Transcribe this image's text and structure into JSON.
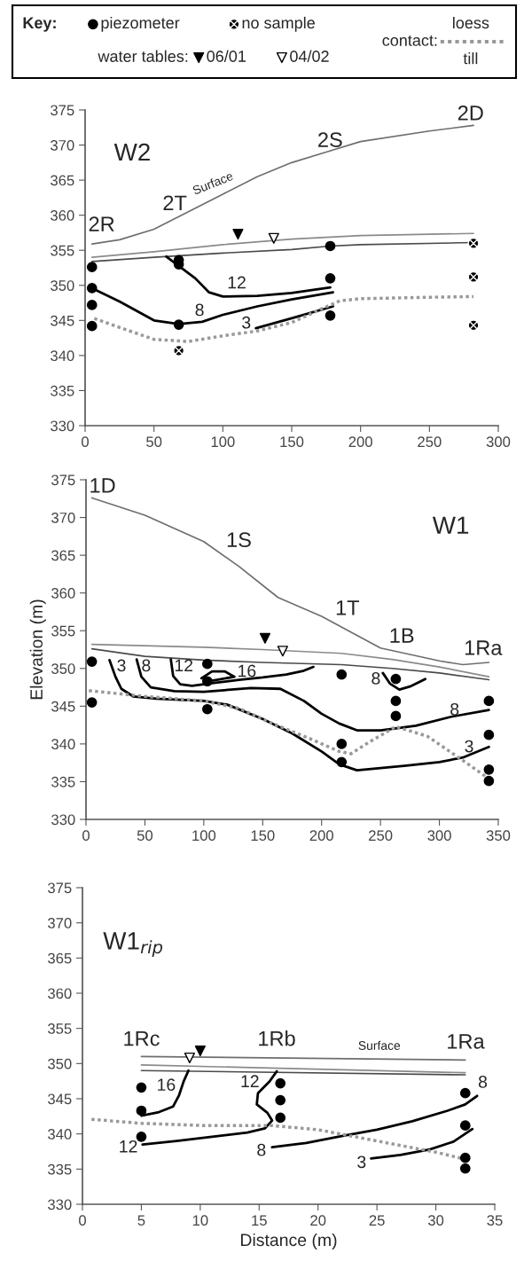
{
  "chart_data": [
    {
      "type": "line",
      "title": "W2",
      "xlim": [
        0,
        300
      ],
      "ylim": [
        330,
        375
      ],
      "xticks": [
        0,
        50,
        100,
        150,
        200,
        250,
        300
      ],
      "yticks": [
        330,
        335,
        340,
        345,
        350,
        355,
        360,
        365,
        370,
        375
      ],
      "legend": "top",
      "legend_title": "Key:",
      "series": [
        {
          "color": "#6e6e6e",
          "x": [
            5,
            25,
            50,
            75,
            100,
            125,
            150,
            175,
            200,
            250,
            282
          ],
          "values": [
            355.9,
            356.5,
            358,
            360.5,
            363,
            365.5,
            367.5,
            369,
            370.5,
            372,
            372.8
          ]
        },
        {
          "color": "#8a8a8a",
          "x": [
            5,
            50,
            100,
            150,
            200,
            282
          ],
          "values": [
            354,
            354.8,
            355.8,
            356.6,
            357.1,
            357.4
          ]
        },
        {
          "color": "#4a4a4a",
          "x": [
            5,
            50,
            100,
            150,
            178,
            200,
            282
          ],
          "values": [
            353.4,
            354,
            354.6,
            355.1,
            355.6,
            355.8,
            356.1
          ]
        },
        {
          "color": "#000000",
          "x": [
            59,
            80,
            90,
            100,
            125,
            150,
            178
          ],
          "values": [
            354.1,
            351,
            349,
            348.4,
            348.5,
            348.9,
            349.7
          ]
        },
        {
          "color": "#000000",
          "x": [
            5,
            25,
            50,
            68,
            85,
            100,
            125,
            150,
            180
          ],
          "values": [
            349.6,
            347.7,
            345,
            344.5,
            344.8,
            345.8,
            347,
            348,
            349
          ]
        },
        {
          "color": "#000000",
          "x": [
            124,
            150,
            180
          ],
          "values": [
            343.9,
            345.3,
            347
          ]
        },
        {
          "color": "#999999",
          "line_style": "dotted",
          "x": [
            5,
            25,
            50,
            75,
            100,
            125,
            150,
            170,
            185,
            200,
            250,
            282
          ],
          "values": [
            345.4,
            344,
            342.3,
            342,
            342.8,
            343.5,
            344.7,
            346.5,
            347.8,
            348.1,
            348.3,
            348.4
          ]
        },
        {
          "type": "scatter",
          "name": "piezometer",
          "color": "#000000",
          "marker": "circle",
          "x": [
            5,
            5,
            5,
            5,
            68,
            68,
            68,
            178,
            178,
            178
          ],
          "values": [
            352.6,
            349.6,
            347.2,
            344.2,
            353.6,
            353,
            344.4,
            355.6,
            351,
            345.7
          ]
        },
        {
          "type": "scatter",
          "name": "no sample",
          "color": "#000000",
          "marker": "cross",
          "x": [
            68,
            282,
            282,
            282
          ],
          "values": [
            340.7,
            356,
            351.2,
            344.3
          ]
        },
        {
          "type": "scatter",
          "name": "06/01",
          "color": "#000000",
          "marker": "triangle",
          "x": [
            111
          ],
          "values": [
            357.3
          ]
        },
        {
          "type": "scatter",
          "name": "04/02",
          "color": "#ffffff",
          "marker": "triangle",
          "x": [
            137
          ],
          "values": [
            356.7
          ]
        }
      ],
      "annotations": [
        "water tables:",
        "contact:",
        "loess",
        "till",
        "2R",
        "2T",
        "Surface",
        "2S",
        "2D",
        "12",
        "8",
        "3"
      ]
    },
    {
      "type": "line",
      "title": "W1",
      "ylabel": "Elevation (m)",
      "xlim": [
        0,
        350
      ],
      "ylim": [
        330,
        375
      ],
      "xticks": [
        0,
        50,
        100,
        150,
        200,
        250,
        300,
        350
      ],
      "yticks": [
        330,
        335,
        340,
        345,
        350,
        355,
        360,
        365,
        370,
        375
      ],
      "series": [
        {
          "color": "#6e6e6e",
          "x": [
            5,
            50,
            100,
            130,
            163,
            200,
            250,
            300,
            320,
            342
          ],
          "values": [
            372.6,
            370.3,
            366.8,
            363.5,
            359.4,
            356.9,
            352.7,
            351,
            350.5,
            350.8
          ]
        },
        {
          "color": "#8a8a8a",
          "x": [
            5,
            100,
            150,
            217,
            260,
            300,
            342
          ],
          "values": [
            353.2,
            352.8,
            352.5,
            352,
            351.2,
            350.2,
            348.9
          ]
        },
        {
          "color": "#4a4a4a",
          "x": [
            5,
            50,
            100,
            150,
            217,
            260,
            300,
            342
          ],
          "values": [
            352.6,
            351.6,
            351.1,
            350.8,
            350.5,
            350,
            349.4,
            348.5
          ]
        },
        {
          "color": "#000000",
          "x": [
            20,
            25,
            30,
            40,
            60,
            100,
            120,
            150,
            175,
            200,
            215,
            230,
            250,
            270,
            300,
            320,
            342
          ],
          "values": [
            351.1,
            348.9,
            347.3,
            346.3,
            346,
            345.7,
            345.2,
            343.3,
            341.4,
            339,
            337.3,
            336.5,
            336.8,
            337.1,
            337.6,
            338.2,
            339.6
          ]
        },
        {
          "color": "#000000",
          "x": [
            43,
            47,
            55,
            75,
            100,
            140,
            165,
            185,
            200,
            215,
            230,
            250,
            280,
            310,
            342
          ],
          "values": [
            351.2,
            348.9,
            347.5,
            347,
            346.9,
            347.4,
            347.3,
            345.7,
            344,
            342.7,
            341.8,
            341.8,
            342.4,
            343.6,
            344.5
          ]
        },
        {
          "color": "#000000",
          "x": [
            72,
            74,
            80,
            90,
            110,
            130,
            150,
            170,
            185,
            193
          ],
          "values": [
            351.2,
            349,
            347.9,
            347.7,
            348.1,
            348.5,
            348.8,
            349.2,
            349.7,
            350.2
          ]
        },
        {
          "color": "#000000",
          "x": [
            98,
            107,
            118,
            126,
            108,
            100
          ],
          "values": [
            348.7,
            349.6,
            349.6,
            348.9,
            348.4,
            348.5
          ]
        },
        {
          "color": "#000000",
          "x": [
            252,
            258,
            266,
            275,
            288
          ],
          "values": [
            349.4,
            348,
            347.2,
            347.6,
            348.6
          ]
        },
        {
          "color": "#999999",
          "line_style": "dotted",
          "x": [
            0,
            25,
            50,
            100,
            130,
            160,
            190,
            215,
            225,
            240,
            263,
            290,
            320,
            342
          ],
          "values": [
            347.1,
            346.7,
            346.3,
            345.7,
            344.7,
            342.6,
            340.7,
            339,
            338.7,
            340.2,
            342.3,
            341,
            337.8,
            335.4
          ]
        },
        {
          "type": "scatter",
          "color": "#000000",
          "marker": "circle",
          "x": [
            5,
            5,
            103,
            103,
            103,
            217,
            217,
            217,
            263,
            263,
            263,
            342,
            342,
            342,
            342
          ],
          "values": [
            350.9,
            345.5,
            350.6,
            348.3,
            344.6,
            349.2,
            340,
            337.6,
            348.6,
            345.7,
            343.7,
            345.7,
            341.2,
            336.6,
            335.1
          ]
        },
        {
          "type": "scatter",
          "color": "#000000",
          "marker": "triangle",
          "x": [
            152
          ],
          "values": [
            354
          ]
        },
        {
          "type": "scatter",
          "color": "#ffffff",
          "marker": "triangle",
          "x": [
            167
          ],
          "values": [
            352.3
          ]
        }
      ],
      "annotations": [
        "1D",
        "1S",
        "1T",
        "1B",
        "1Ra",
        "3",
        "8",
        "12",
        "16",
        "8",
        "8",
        "3"
      ]
    },
    {
      "type": "line",
      "title": "W1$_{rip}$",
      "xlabel": "Distance (m)",
      "xlim": [
        0,
        35
      ],
      "ylim": [
        330,
        375
      ],
      "xticks": [
        0,
        5,
        10,
        15,
        20,
        25,
        30,
        35
      ],
      "yticks": [
        330,
        335,
        340,
        345,
        350,
        355,
        360,
        365,
        370,
        375
      ],
      "series": [
        {
          "color": "#6e6e6e",
          "x": [
            5,
            32.5
          ],
          "values": [
            351,
            350.5
          ]
        },
        {
          "color": "#8a8a8a",
          "x": [
            5,
            32.5
          ],
          "values": [
            349.8,
            348.7
          ]
        },
        {
          "color": "#4a4a4a",
          "x": [
            5,
            32.5
          ],
          "values": [
            349,
            348.4
          ]
        },
        {
          "color": "#000000",
          "x": [
            5,
            6.5,
            7.7,
            8.2,
            8.6,
            9
          ],
          "values": [
            342.6,
            343.1,
            343.9,
            345.5,
            347.5,
            349
          ]
        },
        {
          "color": "#000000",
          "x": [
            5.1,
            8,
            11,
            14,
            15.5,
            16.1,
            15.7,
            14.8,
            14.9,
            15.9,
            16.5
          ],
          "values": [
            338.5,
            339,
            339.6,
            340.2,
            340.8,
            341.9,
            343,
            344.2,
            345.8,
            347.5,
            348.9
          ]
        },
        {
          "color": "#000000",
          "x": [
            16.1,
            19,
            22,
            25,
            28,
            31,
            32.5,
            33.5
          ],
          "values": [
            338.1,
            338.7,
            339.7,
            340.6,
            341.8,
            343.3,
            344.2,
            345.4
          ]
        },
        {
          "color": "#000000",
          "x": [
            24.5,
            27,
            29.5,
            31.5,
            33.1
          ],
          "values": [
            336.5,
            337,
            337.8,
            338.9,
            340.7
          ]
        },
        {
          "color": "#999999",
          "line_style": "dotted",
          "x": [
            0.6,
            5,
            10,
            16,
            20,
            25,
            30,
            32.5
          ],
          "values": [
            342.1,
            341.5,
            341.2,
            341.2,
            340.6,
            339,
            337.4,
            336.4
          ]
        },
        {
          "type": "scatter",
          "color": "#000000",
          "marker": "circle",
          "x": [
            5,
            5,
            5,
            16.8,
            16.8,
            16.8,
            32.5,
            32.5,
            32.5,
            32.5
          ],
          "values": [
            346.6,
            343.3,
            339.6,
            347.2,
            344.8,
            342.3,
            345.8,
            341.2,
            336.6,
            335.1
          ]
        },
        {
          "type": "scatter",
          "color": "#000000",
          "marker": "triangle",
          "x": [
            10
          ],
          "values": [
            351.8
          ]
        },
        {
          "type": "scatter",
          "color": "#ffffff",
          "marker": "triangle",
          "x": [
            9.1
          ],
          "values": [
            350.8
          ]
        }
      ],
      "annotations": [
        "1Rc",
        "1Rb",
        "Surface",
        "1Ra",
        "16",
        "12",
        "12",
        "8",
        "3",
        "8"
      ]
    }
  ]
}
